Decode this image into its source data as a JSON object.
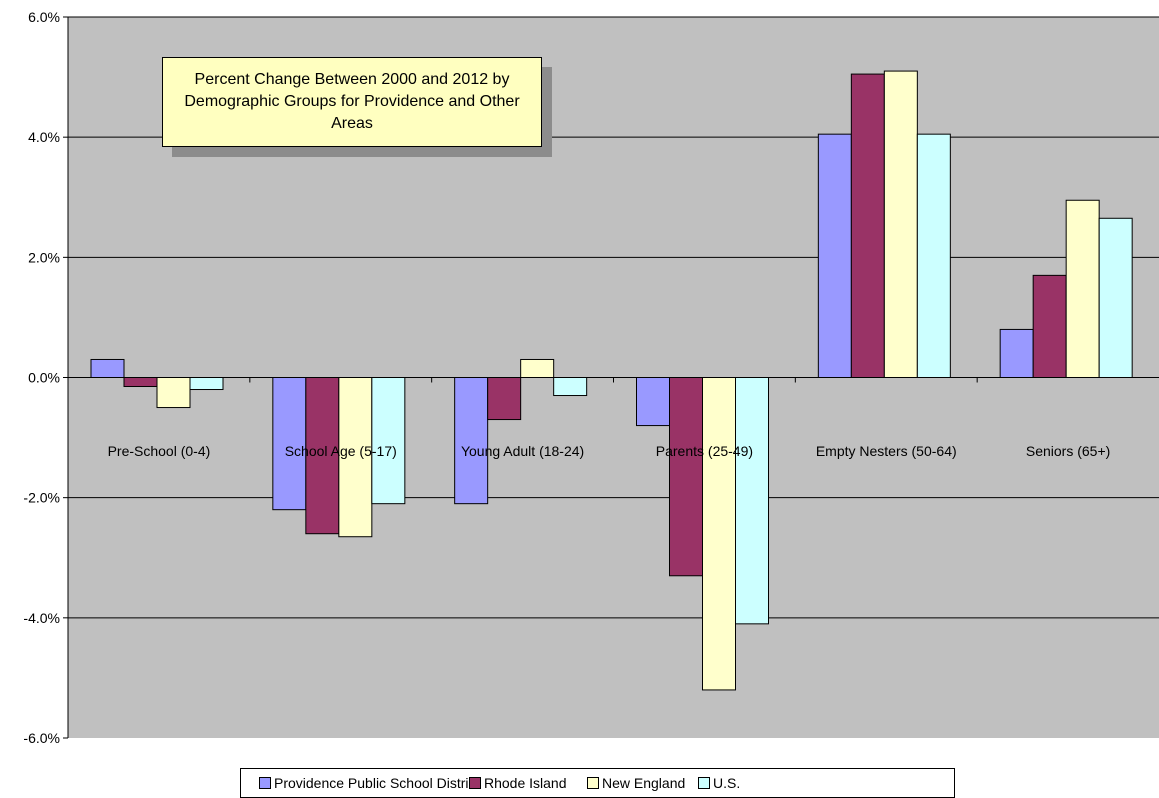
{
  "chart_data": {
    "type": "bar",
    "title": "Percent Change Between 2000 and 2012 by Demographic Groups for Providence and Other Areas",
    "categories": [
      "Pre-School (0-4)",
      "School Age (5-17)",
      "Young Adult (18-24)",
      "Parents (25-49)",
      "Empty Nesters (50-64)",
      "Seniors (65+)"
    ],
    "series": [
      {
        "name": "Providence Public School District",
        "color": "#9999ff",
        "values": [
          0.3,
          -2.2,
          -2.1,
          -0.8,
          4.05,
          0.8
        ]
      },
      {
        "name": "Rhode Island",
        "color": "#993366",
        "values": [
          -0.15,
          -2.6,
          -0.7,
          -3.3,
          5.05,
          1.7
        ]
      },
      {
        "name": "New England",
        "color": "#ffffcc",
        "values": [
          -0.5,
          -2.65,
          0.3,
          -5.2,
          5.1,
          2.95
        ]
      },
      {
        "name": "U.S.",
        "color": "#ccffff",
        "values": [
          -0.2,
          -2.1,
          -0.3,
          -4.1,
          4.05,
          2.65
        ]
      }
    ],
    "ylim": [
      -6.0,
      6.0
    ],
    "y_ticks": [
      "6.0%",
      "4.0%",
      "2.0%",
      "0.0%",
      "-2.0%",
      "-4.0%",
      "-6.0%"
    ],
    "y_tick_values": [
      6,
      4,
      2,
      0,
      -2,
      -4,
      -6
    ],
    "grid": true,
    "plot_background": "#c0c0c0",
    "legend_position": "bottom"
  }
}
